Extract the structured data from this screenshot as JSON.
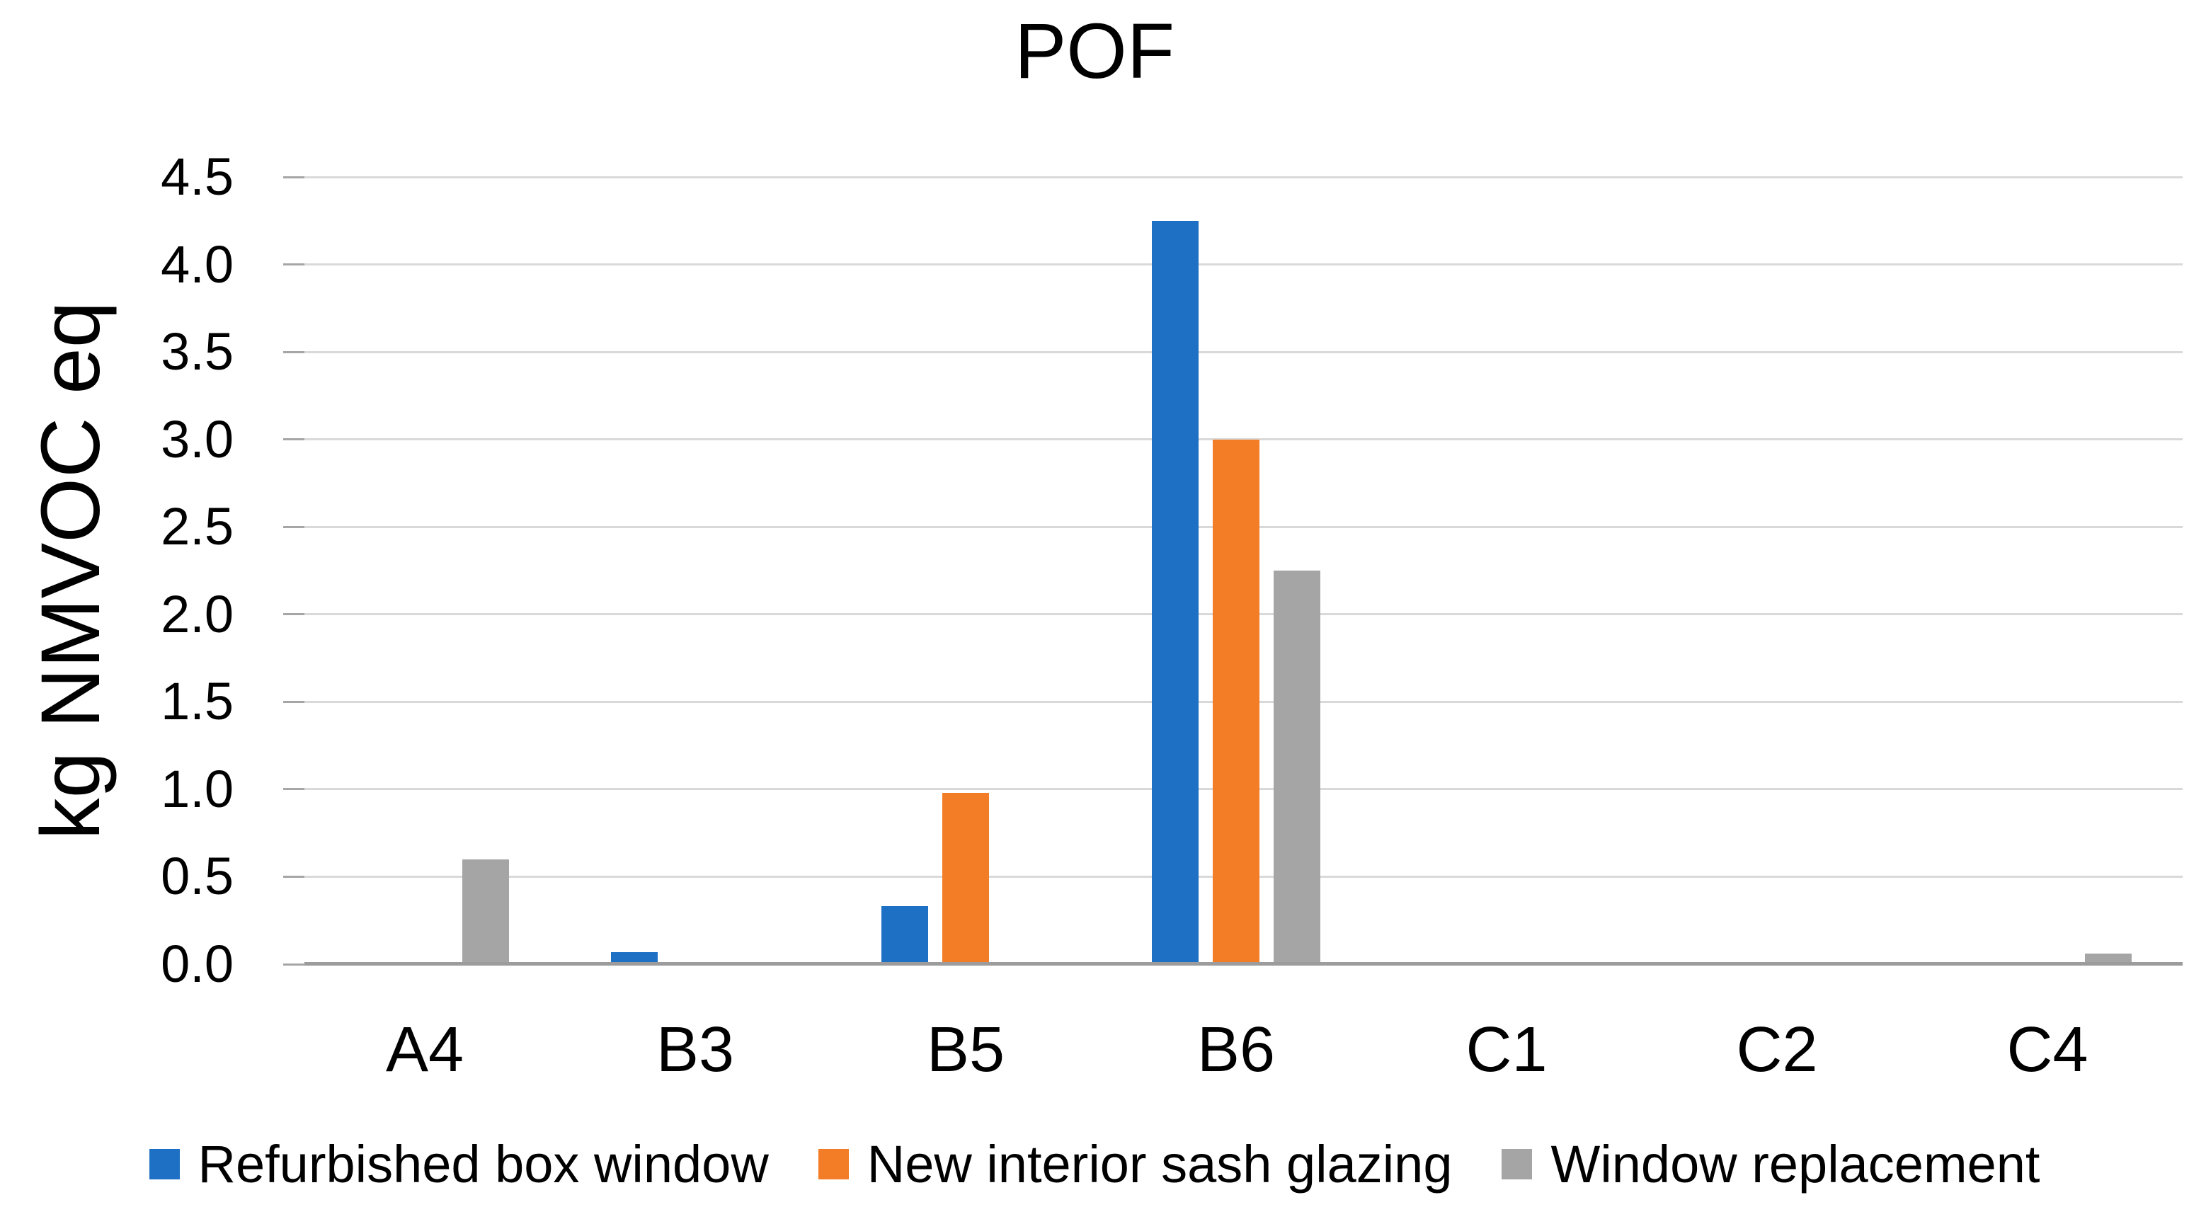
{
  "chart_data": {
    "type": "bar",
    "title": "POF",
    "xlabel": "",
    "ylabel": "kg NMVOC eq",
    "categories": [
      "A4",
      "B3",
      "B5",
      "B6",
      "C1",
      "C2",
      "C4"
    ],
    "series": [
      {
        "name": "Refurbished box window",
        "color": "#1E70C4",
        "values": [
          0,
          0.07,
          0.33,
          4.25,
          0,
          0,
          0
        ]
      },
      {
        "name": "New interior sash glazing",
        "color": "#F27D26",
        "values": [
          0,
          0,
          0.98,
          3.0,
          0,
          0,
          0
        ]
      },
      {
        "name": "Window replacement",
        "color": "#A5A5A5",
        "values": [
          0.6,
          0,
          0,
          2.25,
          0,
          0,
          0.06
        ]
      }
    ],
    "ylim": [
      0,
      4.5
    ],
    "ytick_step": 0.5,
    "ytick_labels": [
      "0.0",
      "0.5",
      "1.0",
      "1.5",
      "2.0",
      "2.5",
      "3.0",
      "3.5",
      "4.0",
      "4.5"
    ],
    "grid": true,
    "legend_position": "bottom"
  },
  "colors": {
    "gridline": "#D9D9D9",
    "axis_line": "#9C9C9C",
    "tick_mark": "#A6A6A6",
    "text": "#000000",
    "background": "#FFFFFF"
  }
}
